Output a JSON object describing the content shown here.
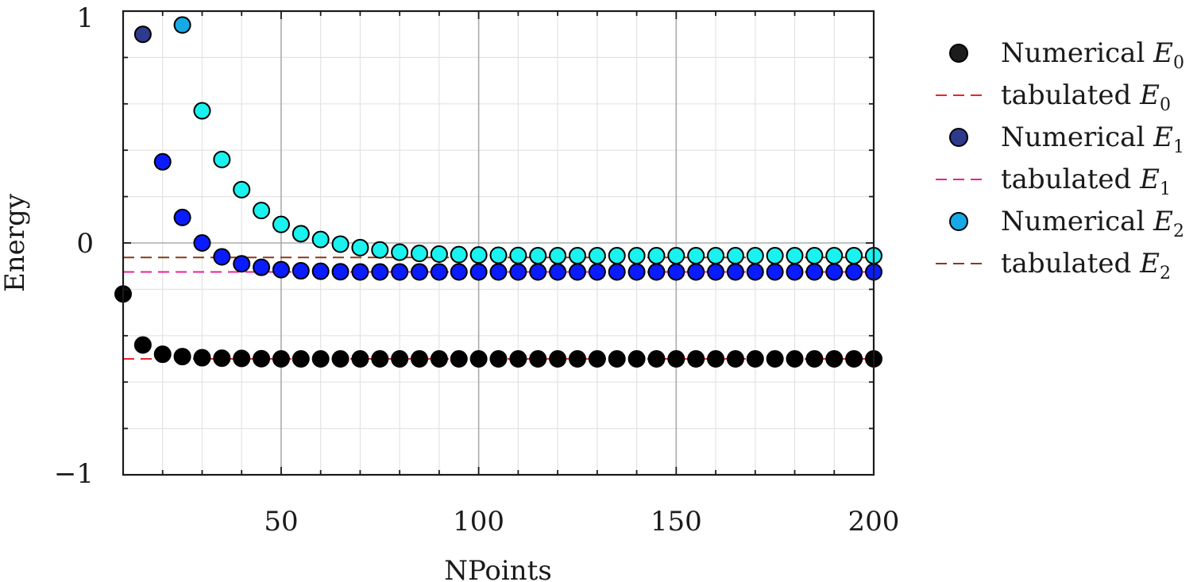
{
  "chart_data": {
    "type": "scatter",
    "xlabel": "NPoints",
    "ylabel": "Energy",
    "xlim": [
      10,
      200
    ],
    "ylim": [
      -1,
      1
    ],
    "x_ticks": [
      50,
      100,
      150,
      200
    ],
    "x_tick_labels": [
      "50",
      "100",
      "150",
      "200"
    ],
    "y_ticks": [
      -1,
      0,
      1
    ],
    "y_tick_labels": [
      "−1",
      "0",
      "1"
    ],
    "grid": true,
    "legend_position": "right",
    "x": [
      10,
      15,
      20,
      25,
      30,
      35,
      40,
      45,
      50,
      55,
      60,
      65,
      70,
      75,
      80,
      85,
      90,
      95,
      100,
      105,
      110,
      115,
      120,
      125,
      130,
      135,
      140,
      145,
      150,
      155,
      160,
      165,
      170,
      175,
      180,
      185,
      190,
      195,
      200
    ],
    "series": [
      {
        "kind": "points",
        "legend_text": "Numerical ",
        "legend_symbol": "E",
        "legend_sub": "0",
        "legend_color": "#1c1c1c",
        "values": [
          -0.22,
          -0.44,
          -0.48,
          -0.49,
          -0.495,
          -0.497,
          -0.498,
          -0.499,
          -0.5,
          -0.5,
          -0.5,
          -0.5,
          -0.5,
          -0.5,
          -0.5,
          -0.5,
          -0.5,
          -0.5,
          -0.5,
          -0.5,
          -0.5,
          -0.5,
          -0.5,
          -0.5,
          -0.5,
          -0.5,
          -0.5,
          -0.5,
          -0.5,
          -0.5,
          -0.5,
          -0.5,
          -0.5,
          -0.5,
          -0.5,
          -0.5,
          -0.5,
          -0.5,
          -0.5
        ],
        "point_colors": [
          "#000000"
        ]
      },
      {
        "kind": "line",
        "legend_text": "tabulated ",
        "legend_symbol": "E",
        "legend_sub": "0",
        "color": "#e8262a",
        "value": -0.5
      },
      {
        "kind": "points",
        "legend_text": "Numerical ",
        "legend_symbol": "E",
        "legend_sub": "1",
        "legend_color": "#2e3a8c",
        "values": [
          null,
          0.9,
          0.35,
          0.11,
          0.0,
          -0.06,
          -0.09,
          -0.105,
          -0.115,
          -0.12,
          -0.122,
          -0.124,
          -0.125,
          -0.125,
          -0.125,
          -0.125,
          -0.125,
          -0.125,
          -0.125,
          -0.125,
          -0.125,
          -0.125,
          -0.125,
          -0.125,
          -0.125,
          -0.125,
          -0.125,
          -0.125,
          -0.125,
          -0.125,
          -0.125,
          -0.125,
          -0.125,
          -0.125,
          -0.125,
          -0.125,
          -0.125,
          -0.125,
          -0.125
        ],
        "point_colors": [
          null,
          "#2e3a8c",
          "#0a1cff",
          "#0a1cff",
          "#0a1cff",
          "#0a1cff",
          "#0a1cff",
          "#0a1cff",
          "#0a1cff",
          "#0a1cff",
          "#0a1cff",
          "#0a1cff",
          "#0a1cff",
          "#0a1cff",
          "#0a1cff",
          "#0a1cff",
          "#0a1cff",
          "#0a1cff",
          "#0a1cff",
          "#0a1cff",
          "#0a1cff",
          "#0a1cff",
          "#0a1cff",
          "#0a1cff",
          "#0a1cff",
          "#0a1cff",
          "#0a1cff",
          "#0a1cff",
          "#0a1cff",
          "#0a1cff",
          "#0a1cff",
          "#0a1cff",
          "#0a1cff",
          "#0a1cff",
          "#0a1cff",
          "#0a1cff",
          "#0a1cff",
          "#0a1cff",
          "#0a1cff"
        ]
      },
      {
        "kind": "line",
        "legend_text": "tabulated ",
        "legend_symbol": "E",
        "legend_sub": "1",
        "color": "#e8209a",
        "value": -0.125
      },
      {
        "kind": "points",
        "legend_text": "Numerical ",
        "legend_symbol": "E",
        "legend_sub": "2",
        "legend_color": "#15a9e6",
        "values": [
          null,
          null,
          null,
          0.94,
          0.57,
          0.36,
          0.23,
          0.14,
          0.08,
          0.04,
          0.015,
          -0.005,
          -0.02,
          -0.03,
          -0.04,
          -0.045,
          -0.048,
          -0.05,
          -0.052,
          -0.053,
          -0.054,
          -0.055,
          -0.055,
          -0.055,
          -0.055,
          -0.055,
          -0.055,
          -0.055,
          -0.055,
          -0.055,
          -0.055,
          -0.055,
          -0.055,
          -0.055,
          -0.055,
          -0.055,
          -0.055,
          -0.055,
          -0.055
        ],
        "point_colors": [
          null,
          null,
          null,
          "#15a9e6",
          "#19f2ef",
          "#19f2ef",
          "#19f2ef",
          "#19f2ef",
          "#19f2ef",
          "#19f2ef",
          "#19f2ef",
          "#19f2ef",
          "#19f2ef",
          "#19f2ef",
          "#19f2ef",
          "#19f2ef",
          "#19f2ef",
          "#19f2ef",
          "#19f2ef",
          "#19f2ef",
          "#19f2ef",
          "#19f2ef",
          "#19f2ef",
          "#19f2ef",
          "#19f2ef",
          "#19f2ef",
          "#19f2ef",
          "#19f2ef",
          "#19f2ef",
          "#19f2ef",
          "#19f2ef",
          "#19f2ef",
          "#19f2ef",
          "#19f2ef",
          "#19f2ef",
          "#19f2ef",
          "#19f2ef",
          "#19f2ef",
          "#19f2ef"
        ]
      },
      {
        "kind": "line",
        "legend_text": "tabulated ",
        "legend_symbol": "E",
        "legend_sub": "2",
        "color": "#8b3a1a",
        "value": -0.0625
      }
    ]
  }
}
